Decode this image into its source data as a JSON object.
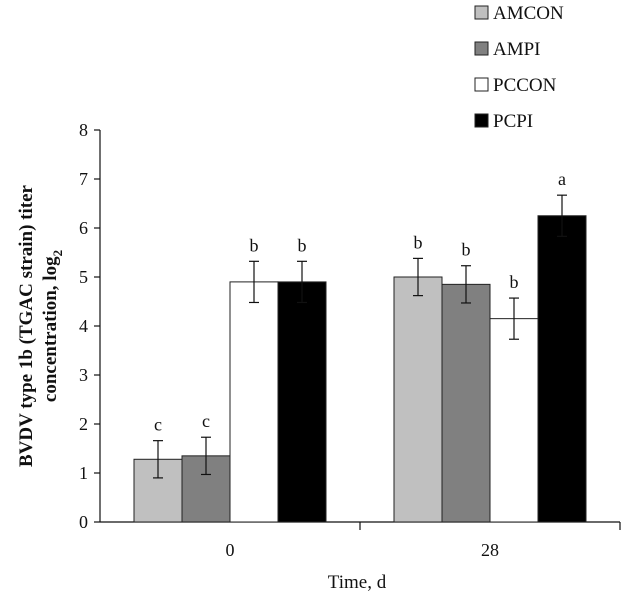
{
  "chart_data": {
    "type": "bar",
    "categories": [
      "0",
      "28"
    ],
    "series": [
      {
        "name": "AMCON",
        "values": [
          1.28,
          5.0
        ],
        "errors": [
          0.38,
          0.38
        ],
        "letters": [
          "c",
          "b"
        ],
        "color": "#c0c0c0"
      },
      {
        "name": "AMPI",
        "values": [
          1.35,
          4.85
        ],
        "errors": [
          0.38,
          0.38
        ],
        "letters": [
          "c",
          "b"
        ],
        "color": "#808080"
      },
      {
        "name": "PCCON",
        "values": [
          4.9,
          4.15
        ],
        "errors": [
          0.42,
          0.42
        ],
        "letters": [
          "b",
          "b"
        ],
        "color": "#ffffff"
      },
      {
        "name": "PCPI",
        "values": [
          4.9,
          6.25
        ],
        "errors": [
          0.42,
          0.42
        ],
        "letters": [
          "b",
          "a"
        ],
        "color": "#000000"
      }
    ],
    "xlabel": "Time, d",
    "ylabel_line1": "BVDV type 1b (TGAC strain) titer",
    "ylabel_line2": "concentration, log",
    "ylabel_subscript": "2",
    "ylim": [
      0,
      8
    ],
    "yticks": [
      "0",
      "1",
      "2",
      "3",
      "4",
      "5",
      "6",
      "7",
      "8"
    ],
    "grid": false,
    "legend_position": "top-right"
  }
}
